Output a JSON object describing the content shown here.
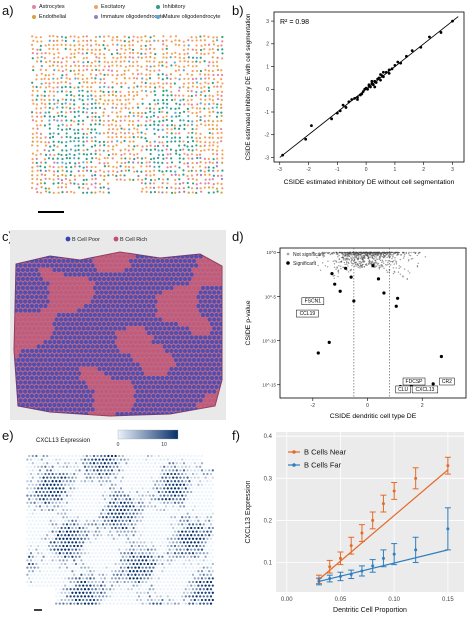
{
  "panel_labels": {
    "a": "a)",
    "b": "b)",
    "c": "c)",
    "d": "d)",
    "e": "e)",
    "f": "f)"
  },
  "colors": {
    "astrocytes": "#e4849f",
    "excitatory": "#f5a25d",
    "inhibitory": "#2e9e88",
    "endothelial": "#d4a23b",
    "immature_oligo": "#9c7bc4",
    "mature_oligo": "#5aa9d6",
    "near": "#e46b2a",
    "far": "#2f7ec0",
    "tissue_pink": "#c06a8a",
    "tissue_blue": "#3346b8",
    "expr_low": "#eaf2fb",
    "expr_high": "#08306b"
  },
  "panel_a": {
    "legend": [
      {
        "label": "Astrocytes",
        "color_key": "astrocytes"
      },
      {
        "label": "Excitatory",
        "color_key": "excitatory"
      },
      {
        "label": "Inhibitory",
        "color_key": "inhibitory"
      },
      {
        "label": "Endothelial",
        "color_key": "endothelial"
      },
      {
        "label": "Immature oligodendrocyte",
        "color_key": "immature_oligo"
      },
      {
        "label": "Mature oligodendrocyte",
        "color_key": "mature_oligo"
      }
    ]
  },
  "panel_c": {
    "legend": [
      {
        "label": "B Cell Poor",
        "color": "#3346b8"
      },
      {
        "label": "B Cell Rich",
        "color": "#c0506e"
      }
    ]
  },
  "panel_e": {
    "legend_title": "CXCL13 Expression",
    "legend_ticks": [
      "0",
      "10"
    ]
  },
  "chart_data": [
    {
      "panel": "b",
      "type": "scatter",
      "annotation": "R² = 0.98",
      "xlabel": "CSIDE estimated inhibitory DE without cell segmentation",
      "ylabel": "CSIDE estimated inhibitory DE with cell segmentation",
      "xlim": [
        -3.2,
        3.4
      ],
      "ylim": [
        -3.2,
        3.4
      ],
      "xticks": [
        -3,
        -2,
        -1,
        0,
        1,
        2,
        3
      ],
      "yticks": [
        -3,
        -2,
        -1,
        0,
        1,
        2,
        3
      ],
      "x": [
        -2.9,
        -2.1,
        -1.9,
        -1.2,
        -1.0,
        -0.8,
        -0.6,
        -0.5,
        -0.4,
        -0.3,
        -0.2,
        -0.15,
        -0.1,
        -0.05,
        0.0,
        0.05,
        0.1,
        0.15,
        0.2,
        0.25,
        0.3,
        0.35,
        0.4,
        0.45,
        0.5,
        0.55,
        0.6,
        0.7,
        0.8,
        0.9,
        1.0,
        1.2,
        1.4,
        1.6,
        1.9,
        2.2,
        2.6,
        3.0,
        -0.7,
        0.1,
        0.3,
        0.6,
        0.2,
        -0.3,
        0.5,
        0.8,
        1.1,
        -0.9
      ],
      "y": [
        -2.9,
        -2.2,
        -1.6,
        -1.3,
        -1.05,
        -0.7,
        -0.55,
        -0.45,
        -0.4,
        -0.35,
        -0.25,
        -0.2,
        -0.1,
        0.0,
        0.05,
        0.0,
        0.15,
        0.1,
        0.25,
        0.2,
        0.35,
        0.3,
        0.45,
        0.5,
        0.4,
        0.6,
        0.55,
        0.75,
        0.85,
        0.9,
        1.05,
        1.15,
        1.45,
        1.7,
        1.85,
        2.3,
        2.5,
        3.0,
        -0.8,
        0.2,
        0.1,
        0.75,
        0.35,
        -0.45,
        0.65,
        0.7,
        1.2,
        -0.95
      ],
      "fit_line": {
        "x": [
          -3.0,
          3.2
        ],
        "y": [
          -3.0,
          3.2
        ]
      }
    },
    {
      "panel": "d",
      "type": "scatter",
      "xlabel": "CSIDE dendritic cell type DE",
      "ylabel": "CSIDE p-value",
      "xlim": [
        -3.2,
        3.6
      ],
      "xticks": [
        -2,
        0,
        2
      ],
      "yticks_labels": [
        "10^-15",
        "10^-10",
        "10^-5",
        "10^0"
      ],
      "ylim_log10": [
        -16.5,
        0.5
      ],
      "thresholds_x": [
        -0.5,
        0.8
      ],
      "legend": [
        "Not significant",
        "Significant"
      ],
      "significant": {
        "x": [
          -1.8,
          -1.4,
          -1.2,
          -1.0,
          -0.6,
          -0.5,
          0.4,
          0.6,
          1.2,
          1.6,
          2.0,
          2.4,
          2.7,
          1.05,
          1.1,
          -1.3,
          -0.8,
          0.2
        ],
        "log10p": [
          -11.4,
          -10.2,
          -3.6,
          -4.4,
          -2.8,
          -5.5,
          -3.0,
          -4.6,
          -15.2,
          -15.0,
          -14.6,
          -14.9,
          -11.8,
          -6.1,
          -5.2,
          -2.4,
          -1.8,
          -1.5
        ]
      },
      "genes": [
        {
          "label": "CLU",
          "x": 1.3,
          "log10p": -15.7
        },
        {
          "label": "CXCL13",
          "x": 2.1,
          "log10p": -15.7
        },
        {
          "label": "FDCSP",
          "x": 1.7,
          "log10p": -14.8
        },
        {
          "label": "CR2",
          "x": 2.9,
          "log10p": -14.8
        },
        {
          "label": "CCL19",
          "x": -2.2,
          "log10p": -7.1
        },
        {
          "label": "FSCN1",
          "x": -2.0,
          "log10p": -5.7
        }
      ]
    },
    {
      "panel": "f",
      "type": "line",
      "xlabel": "Dentritic Cell Proportion",
      "ylabel": "CXCL13 Expression",
      "xlim": [
        -0.01,
        0.165
      ],
      "ylim": [
        0.03,
        0.41
      ],
      "xticks": [
        0.0,
        0.05,
        0.1,
        0.15
      ],
      "yticks": [
        0.1,
        0.2,
        0.3,
        0.4
      ],
      "series": [
        {
          "name": "B Cells Near",
          "color_key": "near",
          "x": [
            0.03,
            0.04,
            0.05,
            0.06,
            0.07,
            0.08,
            0.09,
            0.1,
            0.12,
            0.15
          ],
          "y": [
            0.06,
            0.09,
            0.11,
            0.14,
            0.17,
            0.2,
            0.24,
            0.27,
            0.3,
            0.33
          ],
          "err": [
            0.01,
            0.015,
            0.015,
            0.02,
            0.02,
            0.02,
            0.02,
            0.02,
            0.025,
            0.02
          ],
          "fit": {
            "x": [
              0.03,
              0.15
            ],
            "y": [
              0.06,
              0.32
            ]
          }
        },
        {
          "name": "B Cells Far",
          "color_key": "far",
          "x": [
            0.03,
            0.04,
            0.05,
            0.06,
            0.07,
            0.08,
            0.09,
            0.1,
            0.12,
            0.15
          ],
          "y": [
            0.055,
            0.062,
            0.067,
            0.072,
            0.08,
            0.092,
            0.11,
            0.12,
            0.13,
            0.18
          ],
          "err": [
            0.008,
            0.008,
            0.01,
            0.01,
            0.012,
            0.015,
            0.02,
            0.025,
            0.03,
            0.05
          ],
          "fit": {
            "x": [
              0.03,
              0.15
            ],
            "y": [
              0.055,
              0.13
            ]
          }
        }
      ]
    }
  ]
}
